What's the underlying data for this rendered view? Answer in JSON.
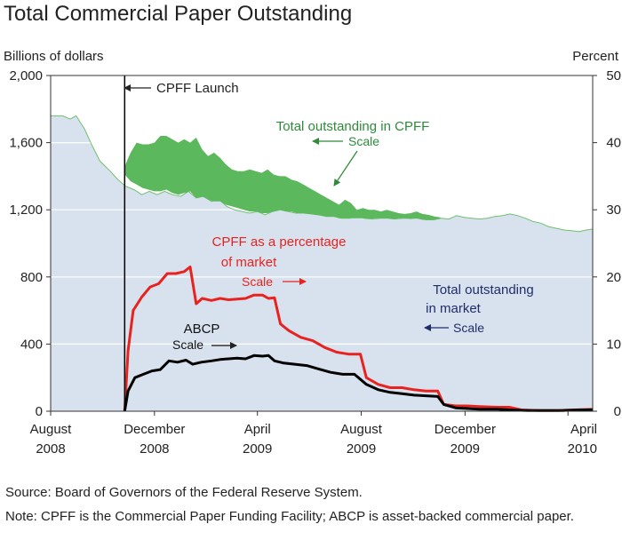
{
  "chart_data": {
    "type": "area",
    "title": "Total Commercial Paper Outstanding",
    "left_axis_label": "Billions of dollars",
    "right_axis_label": "Percent",
    "left_ylim": [
      0,
      2000
    ],
    "right_ylim": [
      0,
      50
    ],
    "left_ticks": [
      "2,000",
      "1,600",
      "1,200",
      "800",
      "400",
      "0"
    ],
    "left_tick_values": [
      2000,
      1600,
      1200,
      800,
      400,
      0
    ],
    "right_ticks": [
      "50",
      "40",
      "30",
      "20",
      "10",
      "0"
    ],
    "right_tick_values": [
      50,
      40,
      30,
      20,
      10,
      0
    ],
    "xlim": [
      "2008-08-01",
      "2010-04-30"
    ],
    "x_ticks": [
      {
        "date": "2008-08-01",
        "line1": "August",
        "line2": "2008"
      },
      {
        "date": "2008-12-01",
        "line1": "December",
        "line2": "2008"
      },
      {
        "date": "2009-04-01",
        "line1": "April",
        "line2": "2009"
      },
      {
        "date": "2009-08-01",
        "line1": "August",
        "line2": "2009"
      },
      {
        "date": "2009-12-01",
        "line1": "December",
        "line2": "2009"
      },
      {
        "date": "2010-04-01",
        "line1": "April",
        "line2": "2010"
      }
    ],
    "grid": "horizontal",
    "series": [
      {
        "name": "Total outstanding in market",
        "axis": "left",
        "color": "#d8e2ee",
        "points": [
          [
            "2008-08-01",
            1760
          ],
          [
            "2008-08-15",
            1760
          ],
          [
            "2008-08-24",
            1740
          ],
          [
            "2008-08-31",
            1760
          ],
          [
            "2008-09-10",
            1680
          ],
          [
            "2008-09-19",
            1580
          ],
          [
            "2008-09-28",
            1490
          ],
          [
            "2008-10-10",
            1430
          ],
          [
            "2008-10-19",
            1380
          ],
          [
            "2008-10-28",
            1340
          ],
          [
            "2008-11-07",
            1320
          ],
          [
            "2008-11-16",
            1290
          ],
          [
            "2008-11-25",
            1310
          ],
          [
            "2008-12-04",
            1290
          ],
          [
            "2008-12-13",
            1310
          ],
          [
            "2008-12-22",
            1290
          ],
          [
            "2009-01-01",
            1280
          ],
          [
            "2009-01-10",
            1310
          ],
          [
            "2009-01-19",
            1270
          ],
          [
            "2009-01-28",
            1280
          ],
          [
            "2009-02-06",
            1250
          ],
          [
            "2009-02-15",
            1260
          ],
          [
            "2009-02-24",
            1220
          ],
          [
            "2009-03-05",
            1200
          ],
          [
            "2009-03-14",
            1190
          ],
          [
            "2009-03-23",
            1180
          ],
          [
            "2009-04-01",
            1190
          ],
          [
            "2009-04-10",
            1170
          ],
          [
            "2009-04-19",
            1190
          ],
          [
            "2009-04-28",
            1200
          ],
          [
            "2009-05-07",
            1190
          ],
          [
            "2009-05-16",
            1180
          ],
          [
            "2009-05-25",
            1180
          ],
          [
            "2009-06-03",
            1175
          ],
          [
            "2009-06-12",
            1170
          ],
          [
            "2009-06-21",
            1160
          ],
          [
            "2009-06-30",
            1160
          ],
          [
            "2009-07-09",
            1150
          ],
          [
            "2009-07-18",
            1150
          ],
          [
            "2009-07-27",
            1160
          ],
          [
            "2009-08-05",
            1150
          ],
          [
            "2009-08-14",
            1145
          ],
          [
            "2009-08-23",
            1150
          ],
          [
            "2009-09-01",
            1150
          ],
          [
            "2009-09-10",
            1145
          ],
          [
            "2009-09-19",
            1150
          ],
          [
            "2009-09-28",
            1150
          ],
          [
            "2009-10-07",
            1150
          ],
          [
            "2009-10-16",
            1140
          ],
          [
            "2009-10-25",
            1140
          ],
          [
            "2009-11-03",
            1150
          ],
          [
            "2009-11-12",
            1145
          ],
          [
            "2009-11-21",
            1165
          ],
          [
            "2009-11-30",
            1155
          ],
          [
            "2009-12-09",
            1150
          ],
          [
            "2009-12-18",
            1145
          ],
          [
            "2009-12-27",
            1150
          ],
          [
            "2010-01-05",
            1160
          ],
          [
            "2010-01-14",
            1165
          ],
          [
            "2010-01-23",
            1175
          ],
          [
            "2010-02-01",
            1165
          ],
          [
            "2010-02-10",
            1150
          ],
          [
            "2010-02-19",
            1130
          ],
          [
            "2010-02-28",
            1120
          ],
          [
            "2010-03-09",
            1100
          ],
          [
            "2010-03-18",
            1090
          ],
          [
            "2010-03-27",
            1080
          ],
          [
            "2010-04-05",
            1075
          ],
          [
            "2010-04-14",
            1070
          ],
          [
            "2010-04-23",
            1080
          ],
          [
            "2010-04-30",
            1085
          ]
        ]
      },
      {
        "name": "Total outstanding in CPFF",
        "axis": "left",
        "color": "#5cb85c",
        "points": [
          [
            "2008-10-27",
            1410,
            1460
          ],
          [
            "2008-11-03",
            1370,
            1540
          ],
          [
            "2008-11-10",
            1350,
            1600
          ],
          [
            "2008-11-17",
            1330,
            1590
          ],
          [
            "2008-11-24",
            1320,
            1590
          ],
          [
            "2008-12-01",
            1310,
            1600
          ],
          [
            "2008-12-08",
            1310,
            1640
          ],
          [
            "2008-12-15",
            1320,
            1640
          ],
          [
            "2008-12-22",
            1300,
            1620
          ],
          [
            "2008-12-29",
            1290,
            1600
          ],
          [
            "2009-01-05",
            1300,
            1620
          ],
          [
            "2009-01-12",
            1310,
            1600
          ],
          [
            "2009-01-19",
            1270,
            1630
          ],
          [
            "2009-01-26",
            1280,
            1560
          ],
          [
            "2009-02-02",
            1260,
            1520
          ],
          [
            "2009-02-09",
            1250,
            1540
          ],
          [
            "2009-02-16",
            1250,
            1510
          ],
          [
            "2009-02-23",
            1230,
            1470
          ],
          [
            "2009-03-02",
            1220,
            1440
          ],
          [
            "2009-03-09",
            1210,
            1430
          ],
          [
            "2009-03-16",
            1200,
            1430
          ],
          [
            "2009-03-23",
            1190,
            1440
          ],
          [
            "2009-03-30",
            1190,
            1430
          ],
          [
            "2009-04-06",
            1180,
            1420
          ],
          [
            "2009-04-13",
            1180,
            1440
          ],
          [
            "2009-04-20",
            1190,
            1410
          ],
          [
            "2009-04-27",
            1200,
            1400
          ],
          [
            "2009-05-04",
            1190,
            1400
          ],
          [
            "2009-05-11",
            1190,
            1380
          ],
          [
            "2009-05-18",
            1180,
            1370
          ],
          [
            "2009-05-25",
            1180,
            1350
          ],
          [
            "2009-06-01",
            1175,
            1330
          ],
          [
            "2009-06-08",
            1170,
            1310
          ],
          [
            "2009-06-15",
            1165,
            1290
          ],
          [
            "2009-06-22",
            1160,
            1270
          ],
          [
            "2009-06-29",
            1160,
            1250
          ],
          [
            "2009-07-06",
            1150,
            1230
          ],
          [
            "2009-07-13",
            1150,
            1260
          ],
          [
            "2009-07-20",
            1150,
            1240
          ],
          [
            "2009-07-27",
            1150,
            1200
          ],
          [
            "2009-08-03",
            1150,
            1210
          ],
          [
            "2009-08-10",
            1145,
            1200
          ],
          [
            "2009-08-17",
            1150,
            1200
          ],
          [
            "2009-08-24",
            1150,
            1190
          ],
          [
            "2009-08-31",
            1150,
            1200
          ],
          [
            "2009-09-07",
            1145,
            1190
          ],
          [
            "2009-09-14",
            1150,
            1180
          ],
          [
            "2009-09-21",
            1150,
            1175
          ],
          [
            "2009-09-28",
            1145,
            1180
          ],
          [
            "2009-10-05",
            1150,
            1190
          ],
          [
            "2009-10-12",
            1140,
            1175
          ],
          [
            "2009-10-19",
            1140,
            1170
          ],
          [
            "2009-10-26",
            1140,
            1160
          ],
          [
            "2009-11-02",
            1150,
            1155
          ]
        ]
      },
      {
        "name": "CPFF as a percentage of market",
        "axis": "right",
        "color": "#e8231f",
        "points": [
          [
            "2008-10-27",
            0
          ],
          [
            "2008-10-31",
            9
          ],
          [
            "2008-11-06",
            15
          ],
          [
            "2008-11-16",
            17
          ],
          [
            "2008-11-26",
            18.5
          ],
          [
            "2008-12-06",
            19
          ],
          [
            "2008-12-16",
            20.5
          ],
          [
            "2008-12-26",
            20.5
          ],
          [
            "2009-01-05",
            20.8
          ],
          [
            "2009-01-12",
            21.5
          ],
          [
            "2009-01-19",
            16
          ],
          [
            "2009-01-26",
            16.8
          ],
          [
            "2009-02-06",
            16.5
          ],
          [
            "2009-02-16",
            16.8
          ],
          [
            "2009-02-26",
            16.6
          ],
          [
            "2009-03-08",
            16.7
          ],
          [
            "2009-03-18",
            16.8
          ],
          [
            "2009-03-28",
            17.3
          ],
          [
            "2009-04-07",
            17.3
          ],
          [
            "2009-04-14",
            16.8
          ],
          [
            "2009-04-21",
            16.9
          ],
          [
            "2009-04-28",
            13
          ],
          [
            "2009-05-08",
            12
          ],
          [
            "2009-05-22",
            11
          ],
          [
            "2009-06-05",
            10.5
          ],
          [
            "2009-06-19",
            9.5
          ],
          [
            "2009-07-03",
            8.8
          ],
          [
            "2009-07-17",
            8.5
          ],
          [
            "2009-07-31",
            8.5
          ],
          [
            "2009-08-07",
            5
          ],
          [
            "2009-08-21",
            4
          ],
          [
            "2009-09-04",
            3.5
          ],
          [
            "2009-09-18",
            3.5
          ],
          [
            "2009-10-02",
            3.2
          ],
          [
            "2009-10-16",
            3
          ],
          [
            "2009-10-30",
            3
          ],
          [
            "2009-11-06",
            1
          ],
          [
            "2009-11-20",
            0.8
          ],
          [
            "2009-12-04",
            0.8
          ],
          [
            "2009-12-18",
            0.7
          ],
          [
            "2010-01-08",
            0.6
          ],
          [
            "2010-01-22",
            0.6
          ],
          [
            "2010-02-05",
            0.2
          ],
          [
            "2010-02-26",
            0.1
          ],
          [
            "2010-03-19",
            0.1
          ],
          [
            "2010-04-09",
            0.2
          ],
          [
            "2010-04-30",
            0.3
          ]
        ]
      },
      {
        "name": "ABCP",
        "axis": "right",
        "color": "#000000",
        "points": [
          [
            "2008-10-27",
            0
          ],
          [
            "2008-10-31",
            3
          ],
          [
            "2008-11-08",
            5
          ],
          [
            "2008-11-18",
            5.5
          ],
          [
            "2008-11-28",
            6
          ],
          [
            "2008-12-08",
            6.2
          ],
          [
            "2008-12-18",
            7.5
          ],
          [
            "2008-12-28",
            7.3
          ],
          [
            "2009-01-07",
            7.6
          ],
          [
            "2009-01-15",
            7
          ],
          [
            "2009-01-25",
            7.3
          ],
          [
            "2009-02-06",
            7.5
          ],
          [
            "2009-02-16",
            7.7
          ],
          [
            "2009-02-26",
            7.8
          ],
          [
            "2009-03-08",
            7.9
          ],
          [
            "2009-03-18",
            7.8
          ],
          [
            "2009-03-28",
            8.3
          ],
          [
            "2009-04-07",
            8.2
          ],
          [
            "2009-04-14",
            8.3
          ],
          [
            "2009-04-21",
            7.5
          ],
          [
            "2009-05-01",
            7.2
          ],
          [
            "2009-05-15",
            7.0
          ],
          [
            "2009-05-29",
            6.8
          ],
          [
            "2009-06-12",
            6.3
          ],
          [
            "2009-06-26",
            5.8
          ],
          [
            "2009-07-10",
            5.5
          ],
          [
            "2009-07-24",
            5.5
          ],
          [
            "2009-08-07",
            4
          ],
          [
            "2009-08-21",
            3.2
          ],
          [
            "2009-09-04",
            2.8
          ],
          [
            "2009-09-18",
            2.6
          ],
          [
            "2009-10-02",
            2.4
          ],
          [
            "2009-10-16",
            2.3
          ],
          [
            "2009-10-30",
            2.2
          ],
          [
            "2009-11-06",
            1
          ],
          [
            "2009-11-20",
            0.5
          ],
          [
            "2009-12-04",
            0.4
          ],
          [
            "2009-12-18",
            0.3
          ],
          [
            "2010-01-08",
            0.3
          ],
          [
            "2010-01-22",
            0.2
          ],
          [
            "2010-02-12",
            0.1
          ],
          [
            "2010-03-05",
            0.1
          ],
          [
            "2010-03-26",
            0.1
          ],
          [
            "2010-04-16",
            0.2
          ],
          [
            "2010-04-30",
            0.2
          ]
        ]
      }
    ],
    "annotations": {
      "cpff_launch": {
        "date": "2008-10-27",
        "label": "CPFF Launch"
      },
      "cpff_total": {
        "line1": "Total outstanding in CPFF",
        "line2": "Scale"
      },
      "cpff_pct": {
        "line1": "CPFF as a percentage",
        "line2": "of market",
        "line3": "Scale"
      },
      "abcp": {
        "line1": "ABCP",
        "line2": "Scale"
      },
      "market": {
        "line1": "Total outstanding",
        "line2": "in market",
        "line3": "Scale"
      }
    }
  },
  "footer": {
    "source": "Source: Board of Governors of the Federal Reserve System.",
    "note": "Note: CPFF is the Commercial Paper Funding Facility; ABCP is asset-backed commercial paper."
  }
}
